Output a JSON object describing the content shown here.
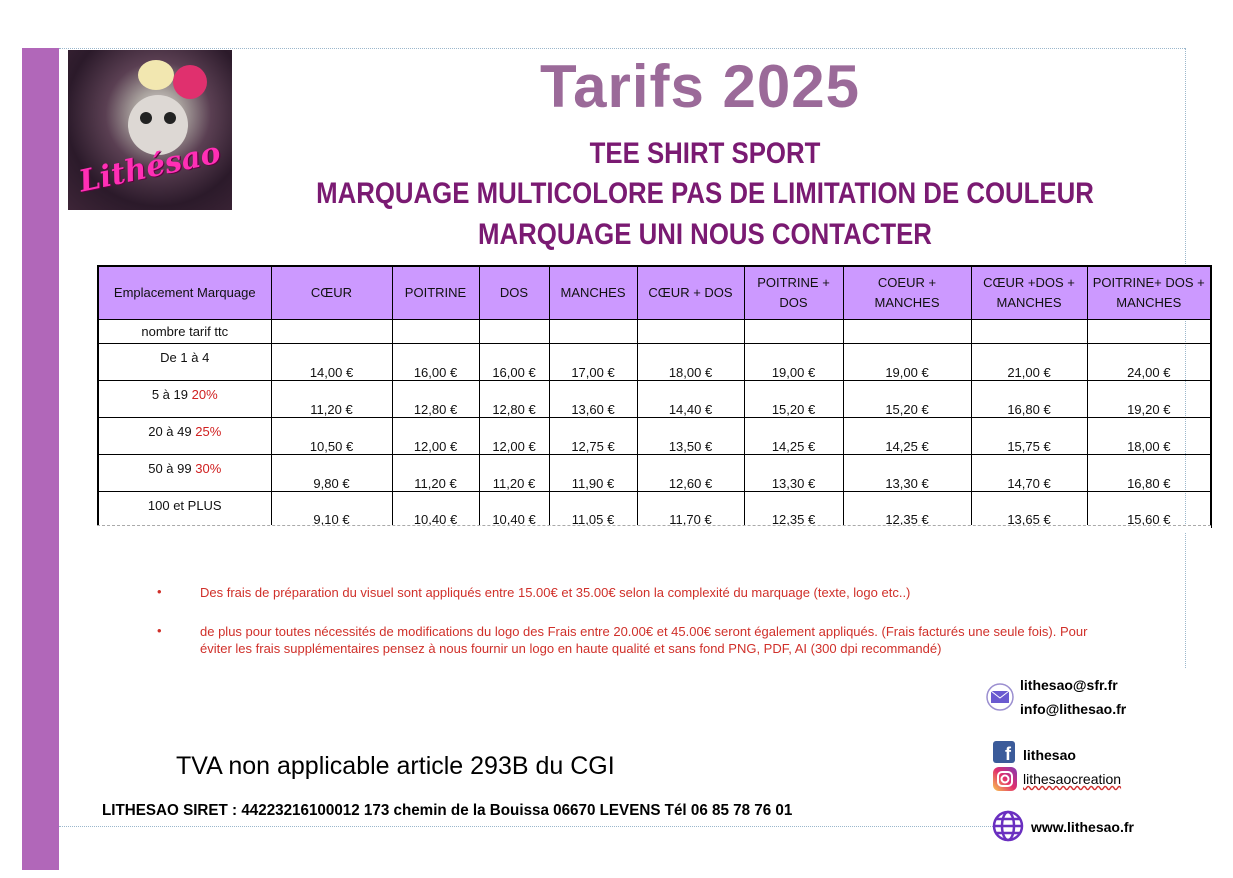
{
  "logo": {
    "text": "Lithésao"
  },
  "header": {
    "title": "Tarifs 2025",
    "lines": [
      "TEE SHIRT SPORT",
      "MARQUAGE MULTICOLORE PAS DE LIMITATION DE COULEUR",
      "MARQUAGE UNI NOUS CONTACTER"
    ]
  },
  "table": {
    "columns": [
      "Emplacement Marquage",
      "CŒUR",
      "POITRINE",
      "DOS",
      "MANCHES",
      "CŒUR + DOS",
      "POITRINE + DOS",
      "COEUR + MANCHES",
      "CŒUR +DOS + MANCHES",
      "POITRINE+ DOS + MANCHES"
    ],
    "subheader": "nombre tarif ttc",
    "rows": [
      {
        "qty": "De 1 à 4",
        "pct": "",
        "values": [
          "14,00 €",
          "16,00 €",
          "16,00 €",
          "17,00 €",
          "18,00 €",
          "19,00 €",
          "19,00 €",
          "21,00 €",
          "24,00 €"
        ]
      },
      {
        "qty": "5 à 19",
        "pct": "20%",
        "values": [
          "11,20 €",
          "12,80 €",
          "12,80 €",
          "13,60 €",
          "14,40 €",
          "15,20 €",
          "15,20 €",
          "16,80 €",
          "19,20 €"
        ]
      },
      {
        "qty": "20 à 49",
        "pct": "25%",
        "values": [
          "10,50 €",
          "12,00 €",
          "12,00 €",
          "12,75 €",
          "13,50 €",
          "14,25 €",
          "14,25 €",
          "15,75 €",
          "18,00 €"
        ]
      },
      {
        "qty": "50 à 99",
        "pct": "30%",
        "values": [
          "9,80 €",
          "11,20 €",
          "11,20 €",
          "11,90 €",
          "12,60 €",
          "13,30 €",
          "13,30 €",
          "14,70 €",
          "16,80 €"
        ]
      },
      {
        "qty": "100 et PLUS",
        "pct": "",
        "values": [
          "9,10 €",
          "10,40 €",
          "10,40 €",
          "11,05 €",
          "11,70 €",
          "12,35 €",
          "12,35 €",
          "13,65 €",
          "15,60 €"
        ]
      }
    ]
  },
  "notes": [
    "Des frais de préparation du visuel sont appliqués entre 15.00€ et 35.00€ selon la complexité du marquage (texte, logo etc..)",
    "de plus pour toutes nécessités de modifications du logo des Frais entre 20.00€ et 45.00€ seront également appliqués. (Frais facturés une seule fois). Pour éviter les frais supplémentaires pensez à nous fournir un logo en haute qualité et sans fond PNG, PDF, AI (300 dpi recommandé)"
  ],
  "footer": {
    "tva": "TVA non applicable article 293B du CGI",
    "siret": "LITHESAO SIRET : 44223216100012 173 chemin de la Bouissa  06670 LEVENS Tél 06 85 78 76 01"
  },
  "contacts": {
    "email1": "lithesao@sfr.fr",
    "email2": "info@lithesao.fr",
    "facebook": "lithesao",
    "instagram": "lithesaocreation",
    "website": "www.lithesao.fr"
  },
  "colors": {
    "accent": "#b167b9",
    "header_bg": "#cc99ff",
    "title": "#9b6a99",
    "subtitle": "#7a1a72",
    "note": "#d0302a"
  }
}
